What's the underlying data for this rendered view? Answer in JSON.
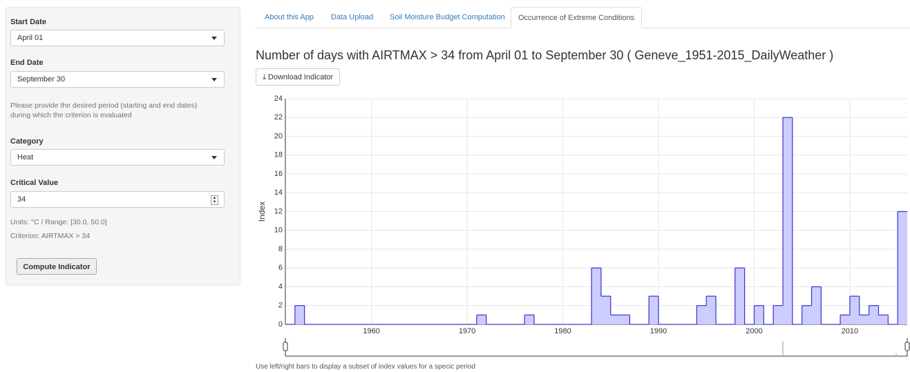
{
  "sidebar": {
    "start_label": "Start Date",
    "start_value": "April 01",
    "end_label": "End Date",
    "end_value": "September 30",
    "period_help": "Please provide the desired period (starting and end dates) during which the criterion is evaluated",
    "category_label": "Category",
    "category_value": "Heat",
    "critical_label": "Critical Value",
    "critical_value": "34",
    "units_text": "Units: °C / Range: [30.0, 50.0]",
    "criterion_text": "Criterion: AIRTMAX > 34",
    "compute_button": "Compute Indicator"
  },
  "tabs": [
    "About this App",
    "Data Upload",
    "Soil Moisture Budget Computation",
    "Occurrence of Extreme Conditions"
  ],
  "download_button": "Download Indicator",
  "footer_note": "Use left/right bars to display a subset of index values for a specic period",
  "chart_data": {
    "type": "step",
    "title": "Number of days with AIRTMAX > 34 from April 01 to September 30 ( Geneve_1951-2015_DailyWeather )",
    "y_label": "Index",
    "x": [
      1951,
      1952,
      1953,
      1954,
      1955,
      1956,
      1957,
      1958,
      1959,
      1960,
      1961,
      1962,
      1963,
      1964,
      1965,
      1966,
      1967,
      1968,
      1969,
      1970,
      1971,
      1972,
      1973,
      1974,
      1975,
      1976,
      1977,
      1978,
      1979,
      1980,
      1981,
      1982,
      1983,
      1984,
      1985,
      1986,
      1987,
      1988,
      1989,
      1990,
      1991,
      1992,
      1993,
      1994,
      1995,
      1996,
      1997,
      1998,
      1999,
      2000,
      2001,
      2002,
      2003,
      2004,
      2005,
      2006,
      2007,
      2008,
      2009,
      2010,
      2011,
      2012,
      2013,
      2014,
      2015
    ],
    "values": [
      0,
      2,
      0,
      0,
      0,
      0,
      0,
      0,
      0,
      0,
      0,
      0,
      0,
      0,
      0,
      0,
      0,
      0,
      0,
      0,
      1,
      0,
      0,
      0,
      0,
      1,
      0,
      0,
      0,
      0,
      0,
      0,
      6,
      3,
      1,
      1,
      0,
      0,
      3,
      0,
      0,
      0,
      0,
      2,
      3,
      0,
      0,
      6,
      0,
      2,
      0,
      2,
      22,
      0,
      2,
      4,
      0,
      0,
      1,
      3,
      1,
      2,
      1,
      0,
      12
    ],
    "color": "#3333cc",
    "fill": "#ccccff",
    "xlim": [
      1951,
      2016
    ],
    "xticks": [
      1960,
      1970,
      1980,
      1990,
      2000,
      2010
    ],
    "ylim": [
      0,
      24
    ],
    "yticks": [
      0,
      2,
      4,
      6,
      8,
      10,
      12,
      14,
      16,
      18,
      20,
      22,
      24
    ],
    "grid": true
  }
}
